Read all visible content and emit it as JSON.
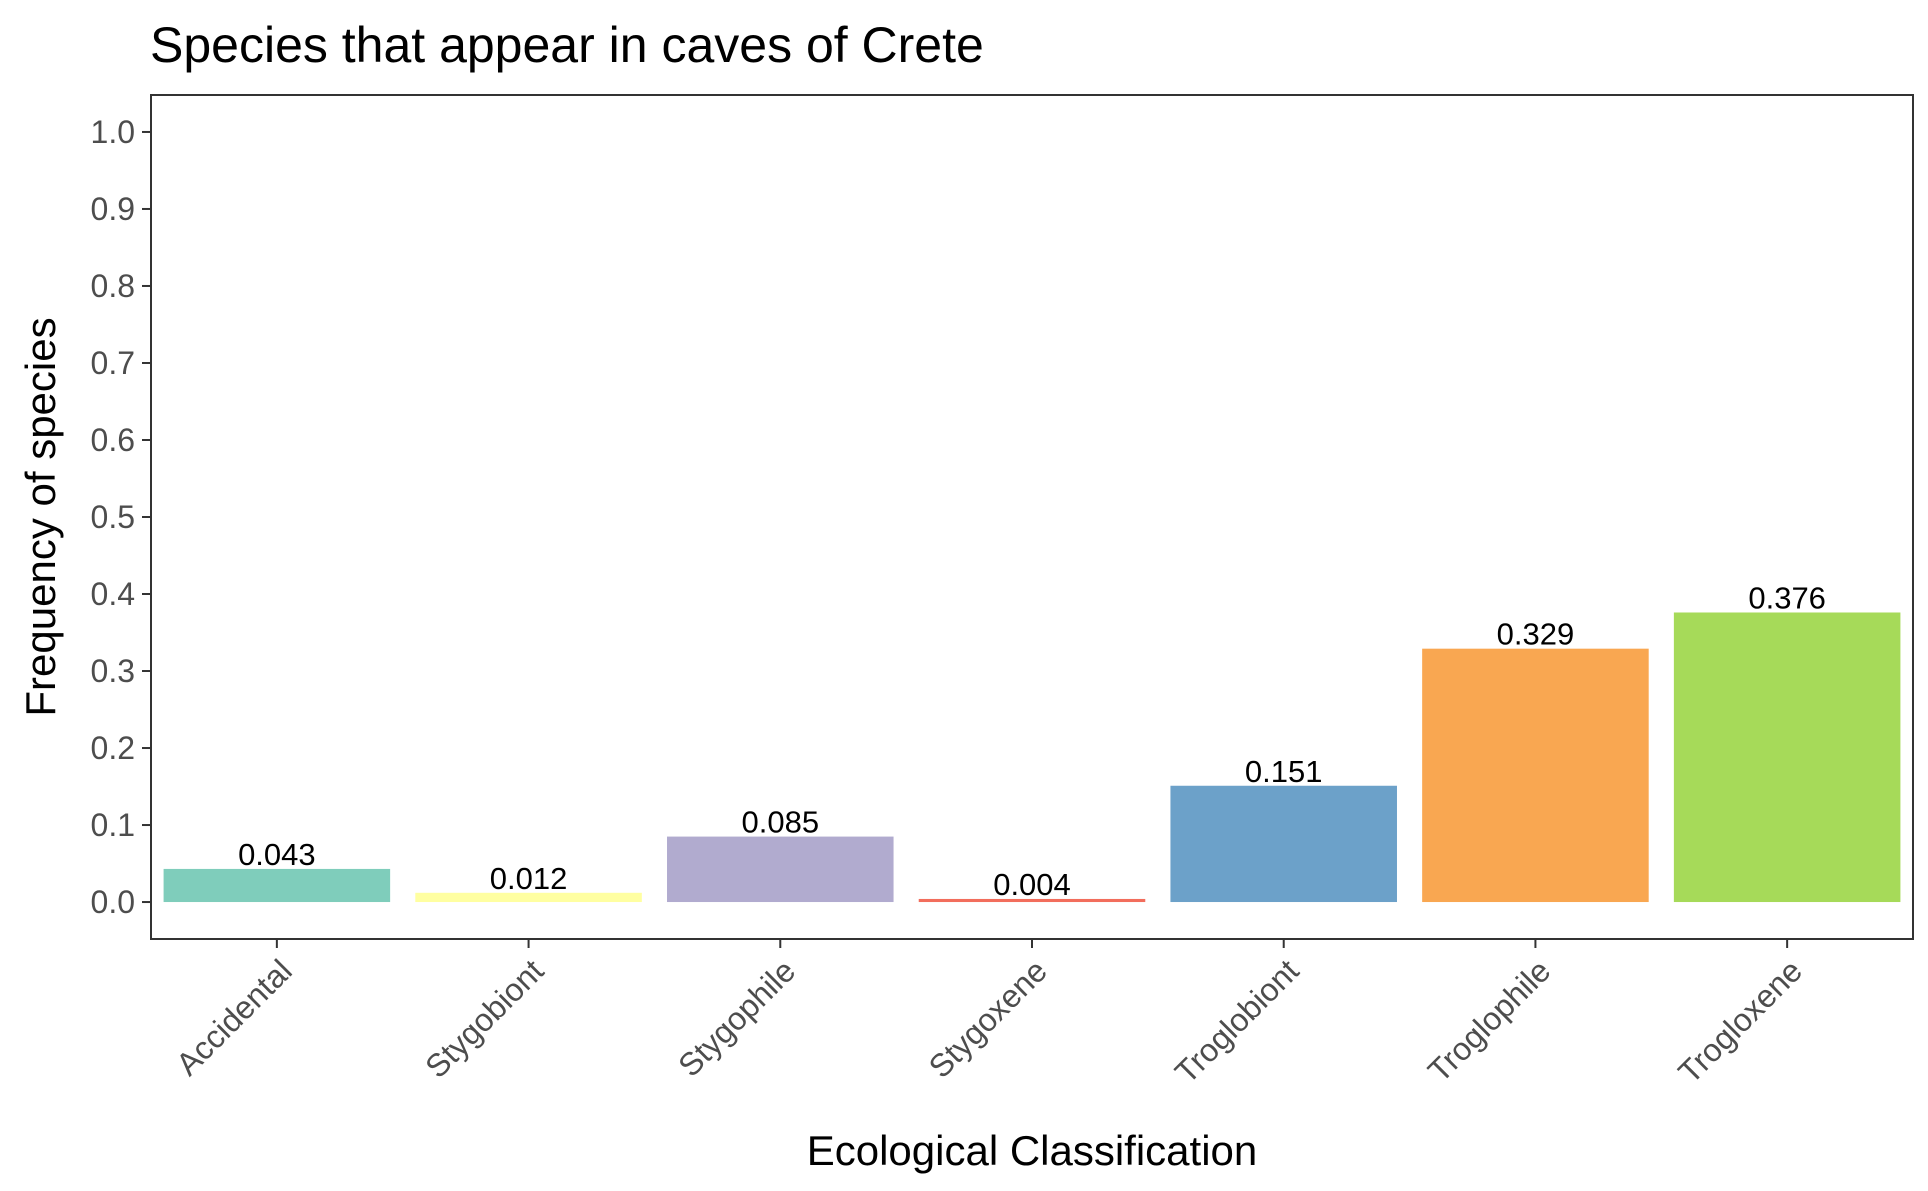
{
  "chart_data": {
    "type": "bar",
    "title": "Species that appear in caves of Crete",
    "xlabel": "Ecological Classification",
    "ylabel": "Frequency of species",
    "categories": [
      "Accidental",
      "Stygobiont",
      "Stygophile",
      "Stygoxene",
      "Troglobiont",
      "Troglophile",
      "Trogloxene"
    ],
    "values": [
      0.043,
      0.012,
      0.085,
      0.004,
      0.151,
      0.329,
      0.376
    ],
    "data_labels": [
      "0.043",
      "0.012",
      "0.085",
      "0.004",
      "0.151",
      "0.329",
      "0.376"
    ],
    "colors": [
      "#7fcdbb",
      "#ffffa1",
      "#b1abcf",
      "#f26d5c",
      "#6ca1c9",
      "#f9a751",
      "#a6da59"
    ],
    "ylim": [
      -0.048,
      1.048
    ],
    "yticks": [
      0.0,
      0.1,
      0.2,
      0.3,
      0.4,
      0.5,
      0.6,
      0.7,
      0.8,
      0.9,
      1.0
    ],
    "ytick_labels": [
      "0.0",
      "0.1",
      "0.2",
      "0.3",
      "0.4",
      "0.5",
      "0.6",
      "0.7",
      "0.8",
      "0.9",
      "1.0"
    ],
    "grid": false,
    "legend": "none",
    "x_tick_rotation": 45
  }
}
